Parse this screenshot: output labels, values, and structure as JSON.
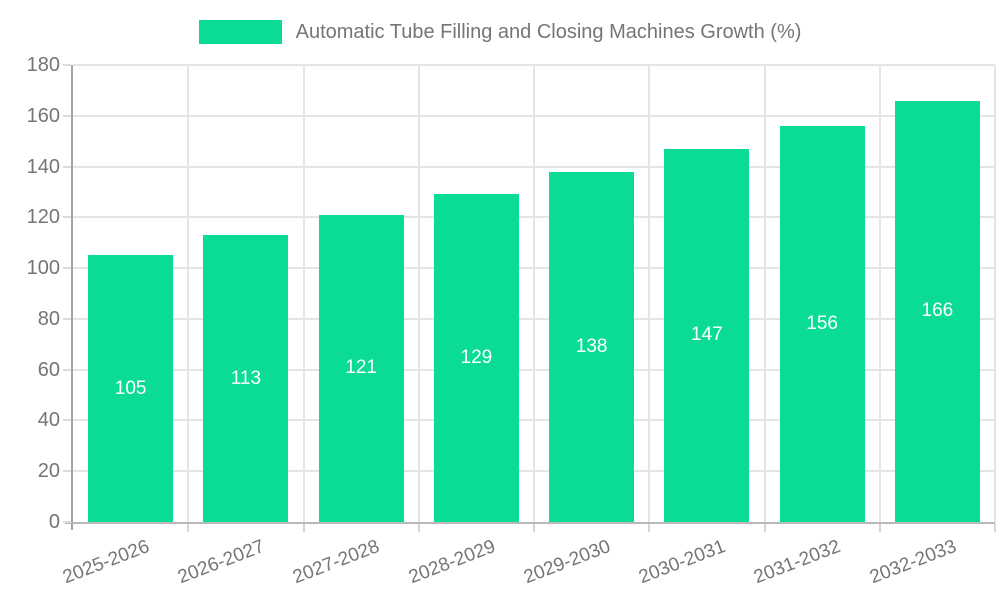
{
  "chart_data": {
    "type": "bar",
    "title": "Automatic Tube Filling and Closing Machines Growth (%)",
    "categories": [
      "2025-2026",
      "2026-2027",
      "2027-2028",
      "2028-2029",
      "2029-2030",
      "2030-2031",
      "2031-2032",
      "2032-2033"
    ],
    "values": [
      105,
      113,
      121,
      129,
      138,
      147,
      156,
      166
    ],
    "value_labels": [
      "105",
      "113",
      "121",
      "129",
      "138",
      "147",
      "156",
      "166"
    ],
    "xlabel": "",
    "ylabel": "",
    "ylim": [
      0,
      180
    ],
    "y_ticks": [
      0,
      20,
      40,
      60,
      80,
      100,
      120,
      140,
      160,
      180
    ],
    "y_tick_labels": [
      "0",
      "20",
      "40",
      "60",
      "80",
      "100",
      "120",
      "140",
      "160",
      "180"
    ],
    "grid": true,
    "legend_position": "top",
    "colors": {
      "bar": "#0adc96",
      "bar_value_label": "#ffffff",
      "axis_text": "#757575",
      "gridline": "#e5e5e5",
      "y_axis_line": "#a3a3a3",
      "x_axis_line": "#b9b9b9"
    }
  },
  "legend": {
    "label": "Automatic Tube Filling and Closing Machines Growth (%)",
    "swatch_color": "#0adc96"
  }
}
